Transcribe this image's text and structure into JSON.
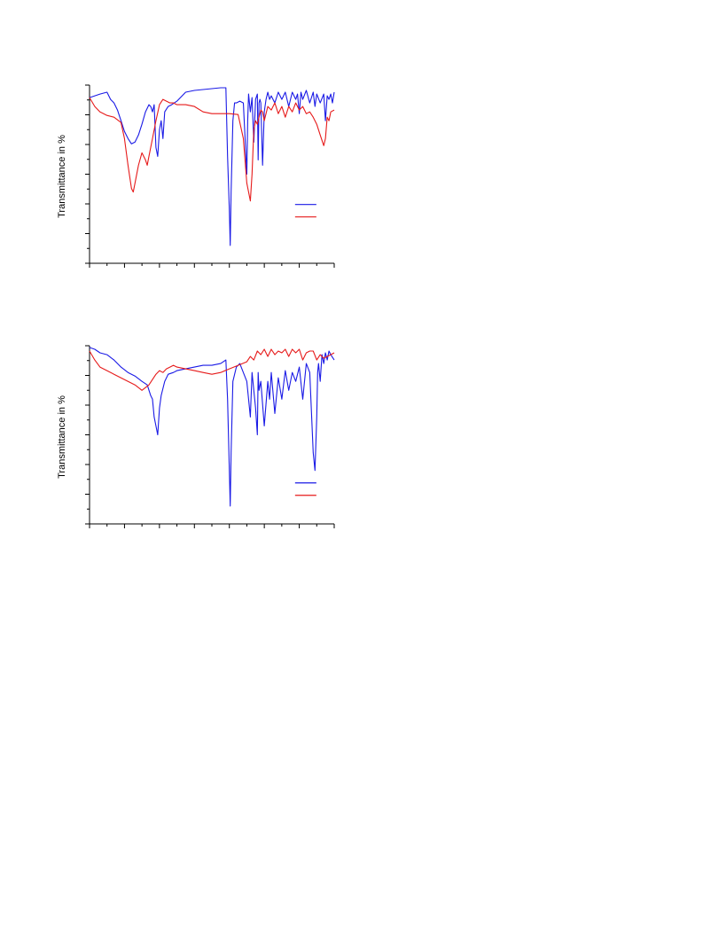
{
  "chart_data": [
    {
      "type": "line",
      "title": "",
      "xlabel": "",
      "ylabel": "Transmittance in %",
      "xlim": [
        0,
        14
      ],
      "ylim": [
        0,
        100
      ],
      "x_ticks": 14,
      "y_ticks": 12,
      "grid": false,
      "legend_position": "right",
      "series": [
        {
          "color": "#1a1ae6",
          "x": [
            0,
            0.3,
            0.6,
            1.0,
            1.2,
            1.4,
            1.6,
            1.8,
            2.0,
            2.2,
            2.4,
            2.6,
            2.8,
            3.0,
            3.2,
            3.4,
            3.5,
            3.6,
            3.7,
            3.8,
            3.9,
            4.0,
            4.1,
            4.2,
            4.3,
            4.5,
            4.7,
            5.0,
            5.5,
            6.0,
            6.5,
            7.0,
            7.5,
            7.8,
            7.9,
            8.0,
            8.05,
            8.1,
            8.2,
            8.3,
            8.4,
            8.6,
            8.8,
            9.0,
            9.05,
            9.1,
            9.2,
            9.3,
            9.4,
            9.5,
            9.6,
            9.65,
            9.7,
            9.75,
            9.8,
            9.9,
            10.0,
            10.1,
            10.2,
            10.3,
            10.4,
            10.6,
            10.8,
            11.0,
            11.2,
            11.4,
            11.6,
            11.8,
            11.9,
            12.0,
            12.1,
            12.2,
            12.4,
            12.6,
            12.8,
            12.9,
            13.0,
            13.2,
            13.4,
            13.5,
            13.6,
            13.7,
            13.8,
            13.9,
            14.0
          ],
          "y": [
            93,
            94,
            95,
            96,
            92,
            90,
            86,
            80,
            74,
            70,
            67,
            68,
            72,
            78,
            85,
            89,
            88,
            85,
            89,
            65,
            60,
            75,
            80,
            70,
            85,
            88,
            89,
            91,
            96,
            97,
            97.5,
            98,
            98.5,
            98.5,
            60,
            30,
            10,
            40,
            80,
            90,
            90,
            91,
            90,
            50,
            80,
            95,
            85,
            93,
            68,
            92,
            95,
            58,
            90,
            92,
            90,
            55,
            85,
            92,
            96,
            92,
            94,
            90,
            96,
            92,
            96,
            88,
            96,
            92,
            95,
            84,
            96,
            92,
            97,
            90,
            96,
            88,
            95,
            90,
            95,
            80,
            94,
            92,
            95,
            90,
            96
          ]
        },
        {
          "color": "#e61a1a",
          "x": [
            0,
            0.3,
            0.6,
            1.0,
            1.4,
            1.8,
            2.0,
            2.2,
            2.4,
            2.5,
            2.6,
            2.8,
            3.0,
            3.2,
            3.3,
            3.4,
            3.6,
            3.8,
            4.0,
            4.2,
            4.4,
            4.6,
            4.8,
            5.0,
            5.5,
            6.0,
            6.5,
            7.0,
            7.5,
            8.0,
            8.5,
            8.8,
            9.0,
            9.2,
            9.3,
            9.4,
            9.5,
            9.6,
            9.7,
            9.8,
            9.9,
            10.0,
            10.2,
            10.4,
            10.6,
            10.8,
            11.0,
            11.2,
            11.4,
            11.6,
            11.8,
            12.0,
            12.2,
            12.4,
            12.6,
            12.8,
            13.0,
            13.2,
            13.4,
            13.5,
            13.6,
            13.7,
            13.8,
            14.0
          ],
          "y": [
            93,
            88,
            85,
            83,
            82,
            79,
            70,
            55,
            42,
            40,
            45,
            55,
            62,
            58,
            55,
            60,
            70,
            80,
            89,
            92,
            91,
            90,
            90,
            89,
            89,
            88,
            85,
            84,
            84,
            84,
            83.5,
            70,
            45,
            35,
            50,
            75,
            80,
            78,
            82,
            86,
            85,
            80,
            88,
            86,
            90,
            84,
            88,
            82,
            88,
            85,
            90,
            86,
            88,
            84,
            85,
            82,
            78,
            72,
            66,
            70,
            82,
            80,
            85,
            86
          ]
        }
      ]
    },
    {
      "type": "line",
      "title": "",
      "xlabel": "",
      "ylabel": "Transmittance in %",
      "xlim": [
        0,
        14
      ],
      "ylim": [
        0,
        100
      ],
      "x_ticks": 14,
      "y_ticks": 12,
      "grid": false,
      "legend_position": "right",
      "series": [
        {
          "color": "#1a1ae6",
          "x": [
            0,
            0.3,
            0.6,
            1.0,
            1.4,
            1.8,
            2.2,
            2.6,
            3.0,
            3.3,
            3.5,
            3.6,
            3.7,
            3.8,
            3.9,
            4.0,
            4.1,
            4.3,
            4.5,
            4.8,
            5.0,
            5.5,
            6.0,
            6.5,
            7.0,
            7.5,
            7.8,
            7.9,
            8.0,
            8.05,
            8.1,
            8.2,
            8.4,
            8.6,
            9.0,
            9.2,
            9.3,
            9.4,
            9.5,
            9.6,
            9.65,
            9.7,
            9.8,
            10.0,
            10.2,
            10.3,
            10.4,
            10.6,
            10.8,
            11.0,
            11.2,
            11.4,
            11.6,
            11.8,
            12.0,
            12.2,
            12.4,
            12.6,
            12.8,
            12.9,
            13.0,
            13.05,
            13.1,
            13.2,
            13.3,
            13.4,
            13.5,
            13.6,
            13.7,
            13.8,
            14.0
          ],
          "y": [
            99,
            98,
            96,
            95,
            92,
            88,
            85,
            83,
            80,
            78,
            72,
            70,
            60,
            55,
            50,
            65,
            72,
            80,
            84,
            85,
            86,
            87,
            88,
            89,
            89,
            90,
            92,
            70,
            30,
            10,
            40,
            80,
            88,
            90,
            80,
            60,
            85,
            75,
            65,
            50,
            85,
            75,
            80,
            55,
            80,
            70,
            85,
            62,
            82,
            70,
            86,
            75,
            85,
            80,
            88,
            70,
            90,
            85,
            40,
            30,
            60,
            85,
            90,
            80,
            95,
            90,
            96,
            92,
            97,
            95,
            92
          ]
        },
        {
          "color": "#e61a1a",
          "x": [
            0,
            0.3,
            0.6,
            1.0,
            1.4,
            1.8,
            2.2,
            2.6,
            3.0,
            3.4,
            3.8,
            4.0,
            4.2,
            4.4,
            4.6,
            4.8,
            5.0,
            5.5,
            6.0,
            6.5,
            7.0,
            7.5,
            8.0,
            8.5,
            9.0,
            9.2,
            9.4,
            9.6,
            9.8,
            10.0,
            10.2,
            10.4,
            10.6,
            10.8,
            11.0,
            11.2,
            11.4,
            11.6,
            11.8,
            12.0,
            12.2,
            12.4,
            12.6,
            12.8,
            13.0,
            13.2,
            13.4,
            13.6,
            13.8,
            14.0
          ],
          "y": [
            97,
            92,
            88,
            86,
            84,
            82,
            80,
            78,
            75,
            78,
            84,
            86,
            85,
            87,
            88,
            89,
            88,
            87,
            86,
            85,
            84,
            85,
            87,
            89,
            91,
            94,
            92,
            97,
            95,
            98,
            94,
            98,
            95,
            97,
            96,
            98,
            94,
            98,
            96,
            98,
            92,
            96,
            97,
            97,
            92,
            95,
            93,
            94,
            95,
            96
          ]
        }
      ]
    }
  ]
}
